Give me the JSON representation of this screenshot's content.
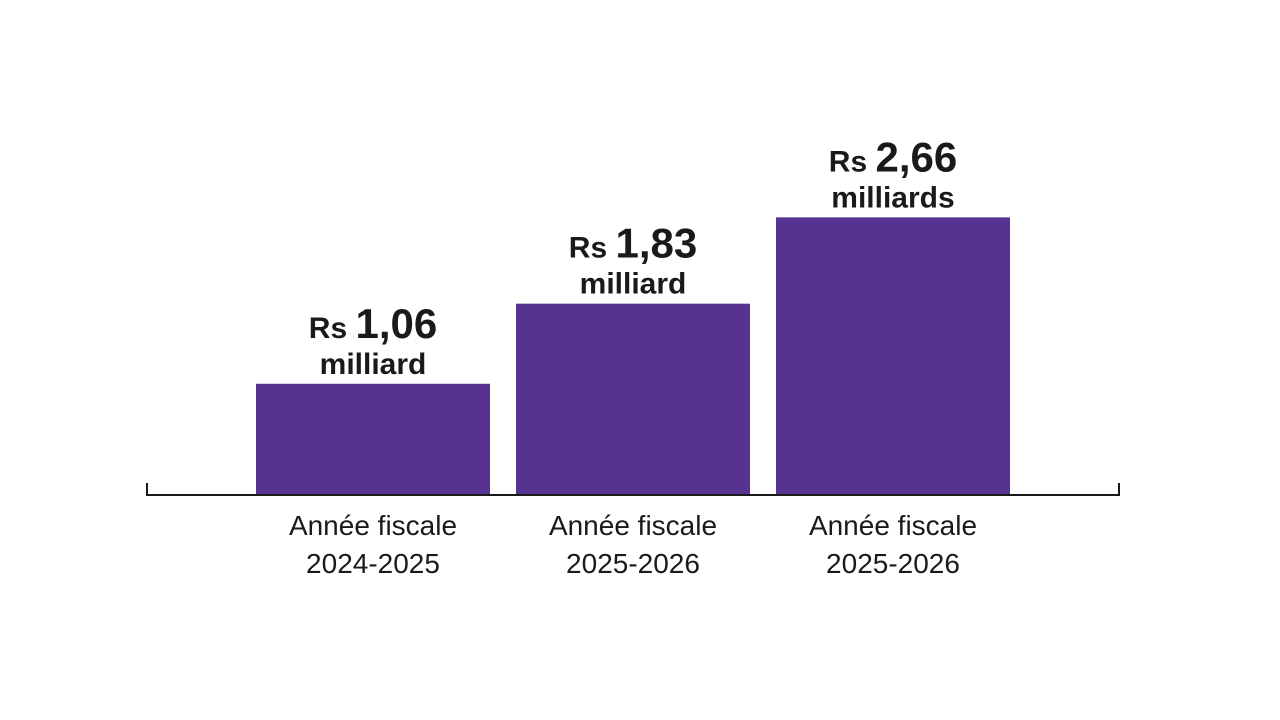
{
  "chart_data": {
    "type": "bar",
    "categories": [
      [
        "Année fiscale",
        "2024-2025"
      ],
      [
        "Année fiscale",
        "2025-2026"
      ],
      [
        "Année fiscale",
        "2025-2026"
      ]
    ],
    "values": [
      1.06,
      1.83,
      2.66
    ],
    "value_labels": [
      {
        "prefix": "Rs",
        "number": "1,06",
        "unit": "milliard"
      },
      {
        "prefix": "Rs",
        "number": "1,83",
        "unit": "milliard"
      },
      {
        "prefix": "Rs",
        "number": "2,66",
        "unit": "milliards"
      }
    ],
    "ylim": [
      0,
      3
    ],
    "grid": false,
    "legend": "none",
    "bar_color": "#573391",
    "axis_color": "#1a1a1a",
    "text_color": "#1a1a1a",
    "title": "",
    "xlabel": "",
    "ylabel": ""
  }
}
